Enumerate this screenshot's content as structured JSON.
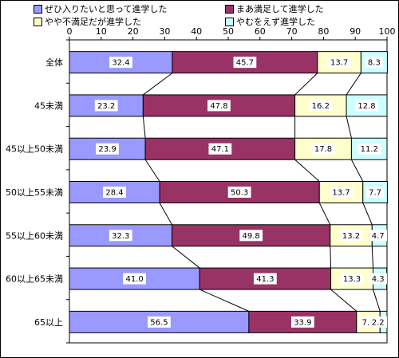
{
  "chart_data": {
    "type": "bar",
    "orientation": "horizontal",
    "stacked": true,
    "xlim": [
      0,
      100
    ],
    "xticks": [
      0,
      10,
      20,
      30,
      40,
      50,
      60,
      70,
      80,
      90,
      100
    ],
    "categories": [
      "全体",
      "45未満",
      "45以上50未満",
      "50以上55未満",
      "55以上60未満",
      "60以上65未満",
      "65以上"
    ],
    "series": [
      {
        "name": "ぜひ入りたいと思って進学した",
        "color": "#9999ff",
        "values": [
          32.4,
          23.2,
          23.9,
          28.4,
          32.3,
          41.0,
          56.5
        ]
      },
      {
        "name": "まあ満足して進学した",
        "color": "#993366",
        "values": [
          45.7,
          47.8,
          47.1,
          50.3,
          49.8,
          41.3,
          33.9
        ]
      },
      {
        "name": "やや不満足だが進学した",
        "color": "#ffffcc",
        "values": [
          13.7,
          16.2,
          17.8,
          13.7,
          13.2,
          13.3,
          7.4
        ]
      },
      {
        "name": "やむをえず進学した",
        "color": "#ccffff",
        "values": [
          8.3,
          12.8,
          11.2,
          7.7,
          4.7,
          4.3,
          2.2
        ]
      }
    ],
    "data_labels": [
      [
        "32.4",
        "45.7",
        "13.7",
        "8.3"
      ],
      [
        "23.2",
        "47.8",
        "16.2",
        "12.8"
      ],
      [
        "23.9",
        "47.1",
        "17.8",
        "11.2"
      ],
      [
        "28.4",
        "50.3",
        "13.7",
        "7.7"
      ],
      [
        "32.3",
        "49.8",
        "13.2",
        "4.7"
      ],
      [
        "41.0",
        "41.3",
        "13.3",
        "4.3"
      ],
      [
        "56.5",
        "33.9",
        "7.4",
        "2.2"
      ]
    ],
    "series_connector_lines": true,
    "legend_position": "top"
  }
}
